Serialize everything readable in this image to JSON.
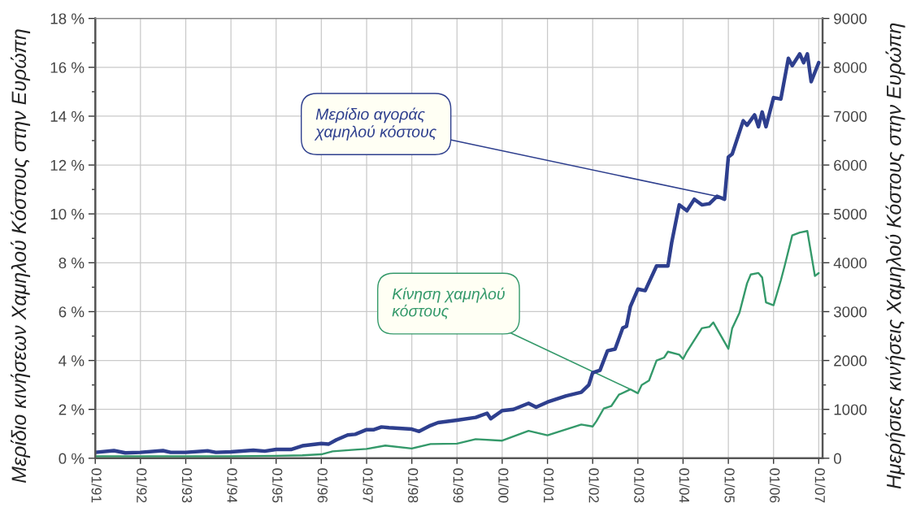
{
  "chart_data": {
    "type": "line",
    "ylabel": "Μερίδιο κινήσεων Χαμηλού Κόστους στην Ευρώπη",
    "y2label": "Ημερήσιες κινήσεις Χαμηλού Κόστους στην Ευρώπη",
    "xlim": [
      "1991-01",
      "2007-02"
    ],
    "xticks": [
      {
        "value": "1991-01",
        "label": "01/91"
      },
      {
        "value": "1992-01",
        "label": "01/92"
      },
      {
        "value": "1993-01",
        "label": "01/93"
      },
      {
        "value": "1994-01",
        "label": "01/94"
      },
      {
        "value": "1995-01",
        "label": "01/95"
      },
      {
        "value": "1996-01",
        "label": "01/96"
      },
      {
        "value": "1997-01",
        "label": "01/97"
      },
      {
        "value": "1998-01",
        "label": "01/98"
      },
      {
        "value": "1999-01",
        "label": "01/99"
      },
      {
        "value": "2000-01",
        "label": "01/00"
      },
      {
        "value": "2001-01",
        "label": "01/01"
      },
      {
        "value": "2002-01",
        "label": "01/02"
      },
      {
        "value": "2003-01",
        "label": "01/03"
      },
      {
        "value": "2004-01",
        "label": "01/04"
      },
      {
        "value": "2005-01",
        "label": "01/05"
      },
      {
        "value": "2006-01",
        "label": "01/06"
      },
      {
        "value": "2007-01",
        "label": "01/07"
      }
    ],
    "ylim": [
      0,
      18
    ],
    "yticks": [
      {
        "value": 0,
        "label": "0 %"
      },
      {
        "value": 2,
        "label": "2 %"
      },
      {
        "value": 4,
        "label": "4 %"
      },
      {
        "value": 6,
        "label": "6 %"
      },
      {
        "value": 8,
        "label": "8 %"
      },
      {
        "value": 10,
        "label": "10 %"
      },
      {
        "value": 12,
        "label": "12 %"
      },
      {
        "value": 14,
        "label": "14 %"
      },
      {
        "value": 16,
        "label": "16 %"
      },
      {
        "value": 18,
        "label": "18 %"
      }
    ],
    "y2lim": [
      0,
      9000
    ],
    "y2ticks": [
      0,
      1000,
      2000,
      3000,
      4000,
      5000,
      6000,
      7000,
      8000,
      9000
    ],
    "grid": true,
    "series": [
      {
        "color": "#2e3f8e",
        "axis": "y",
        "x": [
          "1991-01",
          "1991-06",
          "1991-09",
          "1992-01",
          "1992-07",
          "1992-09",
          "1993-01",
          "1993-07",
          "1993-09",
          "1994-01",
          "1994-07",
          "1994-10",
          "1995-01",
          "1995-05",
          "1995-08",
          "1996-01",
          "1996-03",
          "1996-05",
          "1996-08",
          "1996-10",
          "1997-01",
          "1997-03",
          "1997-05",
          "1997-07",
          "1998-01",
          "1998-03",
          "1998-06",
          "1998-08",
          "1999-01",
          "1999-06",
          "1999-09",
          "1999-10",
          "2000-01",
          "2000-04",
          "2000-08",
          "2000-10",
          "2001-01",
          "2001-06",
          "2001-10",
          "2001-12",
          "2002-01",
          "2002-03",
          "2002-05",
          "2002-07",
          "2002-09",
          "2002-10",
          "2002-11",
          "2003-01",
          "2003-03",
          "2003-06",
          "2003-09",
          "2003-10",
          "2003-12",
          "2004-02",
          "2004-04",
          "2004-06",
          "2004-08",
          "2004-10",
          "2004-12",
          "2005-01",
          "2005-02",
          "2005-05",
          "2005-06",
          "2005-08",
          "2005-09",
          "2005-10",
          "2005-11",
          "2006-01",
          "2006-03",
          "2006-05",
          "2006-06",
          "2006-08",
          "2006-09",
          "2006-10",
          "2006-11",
          "2007-01"
        ],
        "values": [
          0.24,
          0.31,
          0.22,
          0.24,
          0.31,
          0.24,
          0.24,
          0.3,
          0.24,
          0.26,
          0.33,
          0.29,
          0.36,
          0.36,
          0.51,
          0.6,
          0.58,
          0.75,
          0.95,
          0.98,
          1.17,
          1.17,
          1.28,
          1.25,
          1.19,
          1.1,
          1.34,
          1.46,
          1.56,
          1.67,
          1.84,
          1.62,
          1.95,
          2.0,
          2.25,
          2.09,
          2.3,
          2.55,
          2.7,
          3.0,
          3.5,
          3.6,
          4.4,
          4.47,
          5.33,
          5.4,
          6.2,
          6.92,
          6.86,
          7.87,
          7.87,
          8.82,
          10.37,
          10.13,
          10.6,
          10.37,
          10.42,
          10.72,
          10.6,
          12.33,
          12.45,
          13.81,
          13.63,
          14.05,
          13.57,
          14.17,
          13.57,
          14.76,
          14.7,
          16.37,
          16.07,
          16.55,
          16.19,
          16.55,
          15.41,
          16.19
        ]
      },
      {
        "color": "#34996a",
        "axis": "y2",
        "x": [
          "1991-01",
          "1992-01",
          "1993-01",
          "1994-01",
          "1995-01",
          "1995-08",
          "1996-01",
          "1996-04",
          "1996-09",
          "1997-01",
          "1997-06",
          "1998-01",
          "1998-06",
          "1999-01",
          "1999-06",
          "2000-01",
          "2000-08",
          "2001-01",
          "2001-10",
          "2002-01",
          "2002-02",
          "2002-04",
          "2002-06",
          "2002-08",
          "2002-11",
          "2003-01",
          "2003-02",
          "2003-04",
          "2003-06",
          "2003-08",
          "2003-09",
          "2003-12",
          "2004-01",
          "2004-02",
          "2004-06",
          "2004-08",
          "2004-09",
          "2004-11",
          "2005-01",
          "2005-02",
          "2005-04",
          "2005-06",
          "2005-07",
          "2005-09",
          "2005-10",
          "2005-11",
          "2006-01",
          "2006-03",
          "2006-04",
          "2006-06",
          "2006-08",
          "2006-10",
          "2006-12",
          "2007-01"
        ],
        "values": [
          40,
          40,
          40,
          40,
          50,
          60,
          80,
          140,
          170,
          190,
          260,
          200,
          290,
          300,
          390,
          360,
          560,
          470,
          690,
          650,
          760,
          1020,
          1070,
          1300,
          1410,
          1330,
          1500,
          1590,
          2000,
          2060,
          2180,
          2120,
          2030,
          2180,
          2660,
          2690,
          2780,
          2510,
          2240,
          2660,
          2980,
          3580,
          3760,
          3790,
          3700,
          3190,
          3130,
          3640,
          3940,
          4560,
          4620,
          4650,
          3730,
          3790
        ]
      }
    ],
    "annotations": [
      {
        "text": "Μερίδιο αγοράς\nχαμηλού κόστους",
        "x": "2004-10",
        "y": 10.72
      },
      {
        "text": "Κίνηση χαμηλού\nκόστους",
        "x": "2002-11",
        "y": 2.82
      }
    ]
  }
}
